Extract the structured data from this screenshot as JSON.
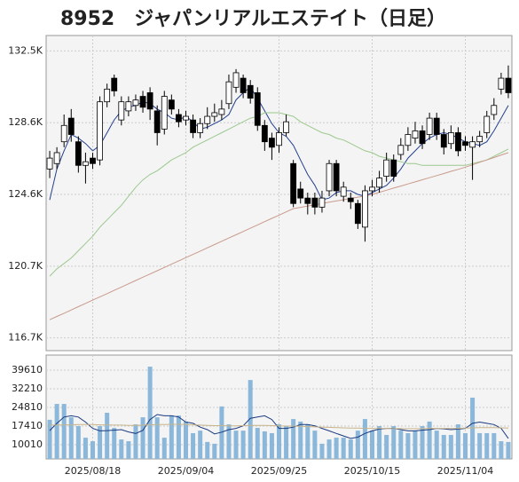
{
  "chart_data": [
    {
      "type": "candlestick",
      "title": "8952　ジャパンリアルエステイト（日足）",
      "categories": [
        null,
        null,
        null,
        null,
        null,
        null,
        "2025/08/18",
        null,
        null,
        null,
        null,
        null,
        null,
        null,
        null,
        null,
        null,
        null,
        null,
        "2025/09/04",
        null,
        null,
        null,
        null,
        null,
        null,
        null,
        null,
        null,
        null,
        null,
        null,
        "2025/09/25",
        null,
        null,
        null,
        null,
        null,
        null,
        null,
        null,
        null,
        null,
        null,
        null,
        "2025/10/15",
        null,
        null,
        null,
        null,
        null,
        null,
        null,
        null,
        null,
        null,
        null,
        null,
        "2025/11/04",
        null,
        null,
        null,
        null,
        null,
        null
      ],
      "open": [
        126000,
        126300,
        127500,
        128800,
        127500,
        126200,
        126600,
        126500,
        129700,
        131000,
        128700,
        129200,
        129500,
        130000,
        130200,
        129200,
        128200,
        129800,
        129000,
        128700,
        128700,
        128000,
        128500,
        128900,
        129000,
        129600,
        130500,
        131000,
        130600,
        130200,
        128400,
        127700,
        127300,
        128000,
        126300,
        124900,
        124400,
        124400,
        123900,
        124800,
        126300,
        124500,
        124400,
        124100,
        122800,
        124800,
        125000,
        125600,
        126500,
        126800,
        127300,
        127700,
        128100,
        127900,
        128800,
        127900,
        127400,
        128000,
        127500,
        127200,
        127500,
        128000,
        129000,
        130400,
        131000
      ],
      "high": [
        127000,
        127200,
        129000,
        129300,
        127800,
        126900,
        126900,
        130000,
        130700,
        131200,
        130000,
        130000,
        130100,
        130300,
        130500,
        129500,
        130300,
        130100,
        129300,
        129200,
        129000,
        128800,
        129400,
        129600,
        129800,
        131200,
        131500,
        131200,
        130900,
        130500,
        128700,
        128000,
        128300,
        129000,
        126500,
        125300,
        124700,
        124700,
        124800,
        126500,
        126500,
        125300,
        124700,
        124300,
        125100,
        125400,
        125900,
        126900,
        126800,
        127700,
        128300,
        128600,
        128400,
        129100,
        129100,
        128200,
        128400,
        128300,
        127800,
        127800,
        128100,
        129200,
        129900,
        131300,
        131700
      ],
      "low": [
        125500,
        126000,
        127200,
        127500,
        125800,
        125200,
        126000,
        126200,
        129400,
        130000,
        128400,
        128900,
        129200,
        129100,
        128700,
        127300,
        127900,
        129000,
        128300,
        128400,
        127700,
        127700,
        128200,
        128600,
        128700,
        129300,
        130200,
        129900,
        129600,
        128100,
        127000,
        126500,
        126900,
        127800,
        123900,
        124100,
        123500,
        123500,
        123600,
        124500,
        124500,
        124200,
        123800,
        122700,
        122000,
        124500,
        124700,
        125300,
        125300,
        126500,
        127000,
        127400,
        127100,
        127600,
        127600,
        126800,
        127100,
        126700,
        127000,
        125400,
        127200,
        127700,
        128700,
        130100,
        129900
      ],
      "close": [
        126600,
        126900,
        128400,
        127900,
        126200,
        126400,
        126300,
        129700,
        130400,
        130300,
        129700,
        129700,
        129800,
        129400,
        129300,
        128000,
        130000,
        129300,
        128600,
        128900,
        128000,
        128500,
        128900,
        129100,
        129300,
        130800,
        131300,
        130200,
        129900,
        128400,
        127500,
        127200,
        128000,
        128600,
        124100,
        124400,
        124100,
        123900,
        124400,
        126300,
        124800,
        125000,
        124200,
        123000,
        124800,
        125000,
        125500,
        126500,
        125600,
        127300,
        127900,
        128100,
        127400,
        128800,
        127900,
        127200,
        128000,
        127000,
        127300,
        127500,
        127800,
        128900,
        129500,
        131000,
        130200
      ],
      "series": [
        {
          "color": "#23408e",
          "values": [
            124300,
            126000,
            127000,
            127900,
            127700,
            127400,
            127000,
            127300,
            128000,
            128700,
            129200,
            129400,
            129500,
            129700,
            129600,
            129300,
            129100,
            128800,
            128700,
            128900,
            128600,
            128200,
            128300,
            128500,
            128700,
            129000,
            129800,
            130200,
            130500,
            129900,
            129200,
            128500,
            128000,
            127800,
            127300,
            126500,
            125700,
            125100,
            124300,
            124400,
            124700,
            124800,
            124800,
            124600,
            124500,
            124700,
            124900,
            125100,
            125500,
            126000,
            126600,
            127000,
            127400,
            127700,
            127900,
            128000,
            127900,
            127700,
            127500,
            127400,
            127300,
            127500,
            128100,
            128800,
            129500
          ]
        },
        {
          "color": "#9cc88e",
          "values": [
            120100,
            120500,
            120800,
            121100,
            121500,
            121900,
            122300,
            122800,
            123200,
            123600,
            124000,
            124500,
            125000,
            125400,
            125700,
            125900,
            126200,
            126500,
            126700,
            126900,
            127200,
            127400,
            127600,
            127800,
            128000,
            128200,
            128400,
            128600,
            128800,
            128900,
            129100,
            129100,
            129100,
            129000,
            128900,
            128600,
            128400,
            128200,
            128000,
            127900,
            127700,
            127600,
            127400,
            127200,
            127000,
            126900,
            126700,
            126600,
            126500,
            126400,
            126300,
            126300,
            126200,
            126200,
            126200,
            126200,
            126200,
            126200,
            126200,
            126300,
            126400,
            126500,
            126700,
            126900,
            127100
          ]
        },
        {
          "color": "#c99a8c",
          "values": [
            117700,
            117880,
            118060,
            118240,
            118420,
            118600,
            118780,
            118960,
            119140,
            119320,
            119500,
            119680,
            119860,
            120040,
            120220,
            120400,
            120580,
            120760,
            120940,
            121120,
            121300,
            121480,
            121660,
            121840,
            122020,
            122200,
            122380,
            122560,
            122740,
            122920,
            123100,
            123280,
            123460,
            123640,
            123820,
            123890,
            123960,
            124030,
            124100,
            124170,
            124240,
            124310,
            124380,
            124450,
            124520,
            124600,
            124720,
            124830,
            124950,
            125060,
            125180,
            125290,
            125410,
            125520,
            125640,
            125750,
            125870,
            125980,
            126100,
            126230,
            126370,
            126500,
            126630,
            126770,
            126900
          ]
        }
      ],
      "ylim": [
        116000,
        133350
      ],
      "yticks": [
        {
          "value": 116700,
          "label": "116.7K"
        },
        {
          "value": 120650,
          "label": "120.7K"
        },
        {
          "value": 124600,
          "label": "124.6K"
        },
        {
          "value": 128550,
          "label": "128.6K"
        },
        {
          "value": 132500,
          "label": "132.5K"
        }
      ],
      "grid": true
    },
    {
      "type": "bar",
      "color": "#8bb8da",
      "values": [
        19900,
        26200,
        26200,
        20900,
        17400,
        12800,
        11400,
        17400,
        22700,
        16700,
        12100,
        11400,
        18100,
        20900,
        41000,
        20900,
        12800,
        21600,
        21600,
        19200,
        14600,
        15600,
        11100,
        10400,
        25200,
        18100,
        15600,
        15600,
        35700,
        16700,
        15300,
        14600,
        18100,
        17400,
        20200,
        19200,
        18100,
        15600,
        10400,
        12100,
        12800,
        12800,
        12100,
        15600,
        20200,
        15600,
        17400,
        13900,
        17400,
        15600,
        14600,
        15600,
        17400,
        19200,
        15600,
        13900,
        13900,
        18100,
        14600,
        28700,
        14600,
        14600,
        14600,
        11400,
        11100
      ],
      "series": [
        {
          "color": "#1a3a80",
          "values": [
            15600,
            18500,
            21000,
            21500,
            21000,
            19000,
            16500,
            15500,
            15600,
            15800,
            16000,
            15100,
            14500,
            15700,
            20000,
            22000,
            21500,
            21500,
            21000,
            19000,
            18500,
            17000,
            16000,
            14300,
            15000,
            16000,
            16500,
            17500,
            20500,
            21000,
            21500,
            20000,
            16500,
            16500,
            17000,
            18000,
            18000,
            17500,
            16500,
            15500,
            14500,
            13500,
            12500,
            13000,
            14500,
            15500,
            16200,
            16500,
            16500,
            16000,
            15500,
            15500,
            15800,
            16000,
            16500,
            16300,
            16000,
            16200,
            16500,
            18500,
            19000,
            18500,
            18000,
            16500,
            12500
          ]
        },
        {
          "color": "#c8b48a",
          "values": [
            17800,
            17800,
            17900,
            17900,
            18000,
            18000,
            18000,
            17900,
            17900,
            17800,
            17800,
            17700,
            17700,
            17800,
            17900,
            18000,
            18000,
            18100,
            18100,
            18000,
            17900,
            17800,
            17700,
            17600,
            17600,
            17500,
            17500,
            17600,
            17700,
            17700,
            17700,
            17600,
            17500,
            17400,
            17400,
            17300,
            17200,
            17100,
            17000,
            16900,
            16800,
            16700,
            16600,
            16600,
            16500,
            16500,
            16500,
            16500,
            16400,
            16400,
            16400,
            16400,
            16400,
            16500,
            16500,
            16500,
            16500,
            16500,
            16600,
            16700,
            16800,
            16800,
            16800,
            16700,
            16600
          ]
        }
      ],
      "ylim": [
        4370,
        45600
      ],
      "yticks": [
        10010,
        17410,
        24810,
        32210,
        39610
      ],
      "grid": true
    }
  ]
}
